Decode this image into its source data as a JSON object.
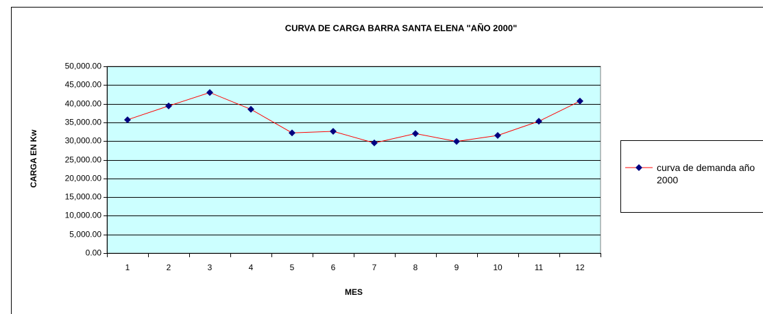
{
  "chart_data": {
    "type": "line",
    "title": "CURVA DE CARGA BARRA SANTA ELENA  \"AÑO  2000\"",
    "x_label": "MES",
    "y_label": "CARGA EN Kw",
    "categories": [
      "1",
      "2",
      "3",
      "4",
      "5",
      "6",
      "7",
      "8",
      "9",
      "10",
      "11",
      "12"
    ],
    "series": [
      {
        "name": "curva de demanda año 2000",
        "color": "#ff0000",
        "marker_color": "#000080",
        "values": [
          35700,
          39400,
          43000,
          38500,
          32200,
          32600,
          29500,
          32000,
          29900,
          31500,
          35300,
          40700
        ]
      }
    ],
    "ylim": [
      0,
      50000
    ],
    "yticks": [
      {
        "value": 0,
        "label": "0.00"
      },
      {
        "value": 5000,
        "label": "5,000.00"
      },
      {
        "value": 10000,
        "label": "10,000.00"
      },
      {
        "value": 15000,
        "label": "15,000.00"
      },
      {
        "value": 20000,
        "label": "20,000.00"
      },
      {
        "value": 25000,
        "label": "25,000.00"
      },
      {
        "value": 30000,
        "label": "30,000.00"
      },
      {
        "value": 35000,
        "label": "35,000.00"
      },
      {
        "value": 40000,
        "label": "40,000.00"
      },
      {
        "value": 45000,
        "label": "45,000.00"
      },
      {
        "value": 50000,
        "label": "50,000.00"
      }
    ],
    "grid": true,
    "plot_background": "#ccffff",
    "legend": "right"
  }
}
